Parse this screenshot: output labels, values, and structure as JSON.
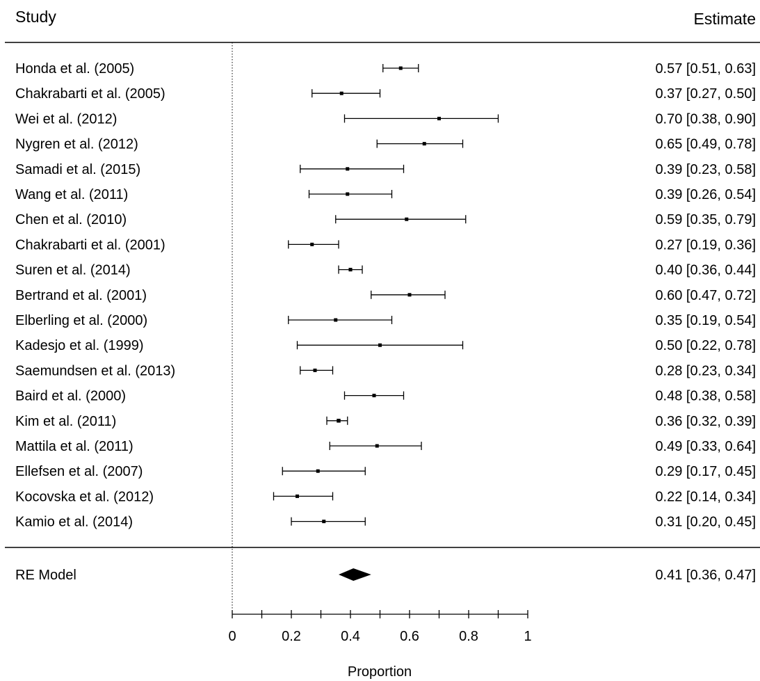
{
  "chart_data": {
    "type": "forest",
    "headers": {
      "study": "Study",
      "estimate": "Estimate"
    },
    "studies": [
      {
        "label": "Honda et al. (2005)",
        "estimate": 0.57,
        "ci_low": 0.51,
        "ci_high": 0.63,
        "text": "0.57 [0.51, 0.63]"
      },
      {
        "label": "Chakrabarti et al. (2005)",
        "estimate": 0.37,
        "ci_low": 0.27,
        "ci_high": 0.5,
        "text": "0.37 [0.27, 0.50]"
      },
      {
        "label": "Wei et al. (2012)",
        "estimate": 0.7,
        "ci_low": 0.38,
        "ci_high": 0.9,
        "text": "0.70 [0.38, 0.90]"
      },
      {
        "label": "Nygren et al. (2012)",
        "estimate": 0.65,
        "ci_low": 0.49,
        "ci_high": 0.78,
        "text": "0.65 [0.49, 0.78]"
      },
      {
        "label": "Samadi et al. (2015)",
        "estimate": 0.39,
        "ci_low": 0.23,
        "ci_high": 0.58,
        "text": "0.39 [0.23, 0.58]"
      },
      {
        "label": "Wang et al. (2011)",
        "estimate": 0.39,
        "ci_low": 0.26,
        "ci_high": 0.54,
        "text": "0.39 [0.26, 0.54]"
      },
      {
        "label": "Chen et al. (2010)",
        "estimate": 0.59,
        "ci_low": 0.35,
        "ci_high": 0.79,
        "text": "0.59 [0.35, 0.79]"
      },
      {
        "label": "Chakrabarti et al. (2001)",
        "estimate": 0.27,
        "ci_low": 0.19,
        "ci_high": 0.36,
        "text": "0.27 [0.19, 0.36]"
      },
      {
        "label": "Suren et al. (2014)",
        "estimate": 0.4,
        "ci_low": 0.36,
        "ci_high": 0.44,
        "text": "0.40 [0.36, 0.44]"
      },
      {
        "label": "Bertrand et al. (2001)",
        "estimate": 0.6,
        "ci_low": 0.47,
        "ci_high": 0.72,
        "text": "0.60 [0.47, 0.72]"
      },
      {
        "label": "Elberling et al. (2000)",
        "estimate": 0.35,
        "ci_low": 0.19,
        "ci_high": 0.54,
        "text": "0.35 [0.19, 0.54]"
      },
      {
        "label": "Kadesjo et al. (1999)",
        "estimate": 0.5,
        "ci_low": 0.22,
        "ci_high": 0.78,
        "text": "0.50 [0.22, 0.78]"
      },
      {
        "label": "Saemundsen et al. (2013)",
        "estimate": 0.28,
        "ci_low": 0.23,
        "ci_high": 0.34,
        "text": "0.28 [0.23, 0.34]"
      },
      {
        "label": "Baird et al. (2000)",
        "estimate": 0.48,
        "ci_low": 0.38,
        "ci_high": 0.58,
        "text": "0.48 [0.38, 0.58]"
      },
      {
        "label": "Kim et al. (2011)",
        "estimate": 0.36,
        "ci_low": 0.32,
        "ci_high": 0.39,
        "text": "0.36 [0.32, 0.39]"
      },
      {
        "label": "Mattila et al. (2011)",
        "estimate": 0.49,
        "ci_low": 0.33,
        "ci_high": 0.64,
        "text": "0.49 [0.33, 0.64]"
      },
      {
        "label": "Ellefsen et al. (2007)",
        "estimate": 0.29,
        "ci_low": 0.17,
        "ci_high": 0.45,
        "text": "0.29 [0.17, 0.45]"
      },
      {
        "label": "Kocovska et al. (2012)",
        "estimate": 0.22,
        "ci_low": 0.14,
        "ci_high": 0.34,
        "text": "0.22 [0.14, 0.34]"
      },
      {
        "label": "Kamio et al. (2014)",
        "estimate": 0.31,
        "ci_low": 0.2,
        "ci_high": 0.45,
        "text": "0.31 [0.20, 0.45]"
      }
    ],
    "summary": {
      "label": "RE Model",
      "estimate": 0.41,
      "ci_low": 0.36,
      "ci_high": 0.47,
      "text": "0.41 [0.36, 0.47]"
    },
    "reference_line": 0,
    "xlabel": "Proportion",
    "xlim": [
      0,
      1
    ],
    "ticks": [
      0,
      0.2,
      0.4,
      0.6,
      0.8,
      1
    ],
    "tick_labels": [
      "0",
      "0.2",
      "0.4",
      "0.6",
      "0.8",
      "1"
    ],
    "colors": {
      "ink": "#000000",
      "background": "#ffffff"
    }
  }
}
